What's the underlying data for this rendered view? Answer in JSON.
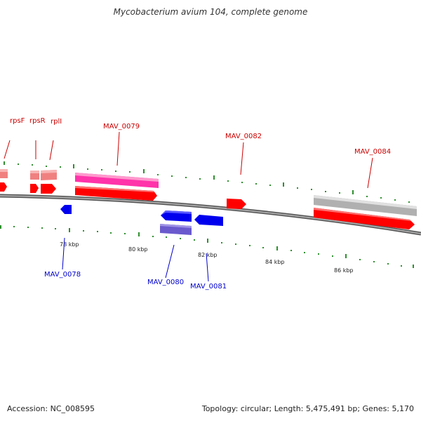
{
  "title": "Mycobacterium avium 104, complete genome",
  "accession": "Accession: NC_008595",
  "summary": "Topology: circular; Length: 5,475,491 bp; Genes: 5,170",
  "colors": {
    "backbone": "#7f7f7f",
    "ticks": "#2f8f2f",
    "forward_label": "#cc0000",
    "reverse_label": "#0000cc",
    "red_feature": "#ff0000",
    "light_red_feature": "#f08080",
    "pink_feature": "#ff33aa",
    "gray_feature": "#c8c8c8",
    "blue_feature": "#0000ee",
    "slate_feature": "#6a5acd"
  },
  "kbp_labels": [
    "78 kbp",
    "80 kbp",
    "82 kbp",
    "84 kbp",
    "86 kbp"
  ],
  "gene_labels": {
    "rpsF": "rpsF",
    "rpsR": "rpsR",
    "rplI": "rplI",
    "MAV_0079": "MAV_0079",
    "MAV_0082": "MAV_0082",
    "MAV_0084": "MAV_0084",
    "MAV_0078": "MAV_0078",
    "MAV_0080": "MAV_0080",
    "MAV_0081": "MAV_0081"
  }
}
